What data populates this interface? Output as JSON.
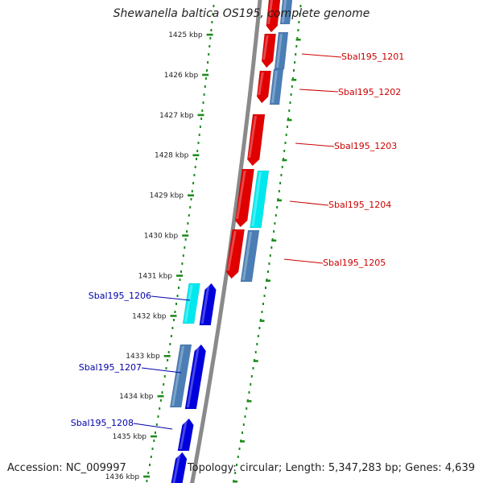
{
  "title": "Shewanella baltica OS195, complete genome",
  "footer": {
    "accession": "Accession: NC_009997",
    "summary": "Topology: circular; Length: 5,347,283 bp; Genes: 4,639"
  },
  "colors": {
    "backbone": "#8a8a8a",
    "tick": "#1e8c1e",
    "forward_gene": "#e00000",
    "forward_label": "#cc0000",
    "reverse_gene": "#0000dd",
    "reverse_label": "#0000aa",
    "cds_cyan": "#00e8ee",
    "cds_steel": "#4a7eb5"
  },
  "ruler": {
    "labels": [
      "1425 kbp",
      "1426 kbp",
      "1427 kbp",
      "1428 kbp",
      "1429 kbp",
      "1430 kbp",
      "1431 kbp",
      "1432 kbp",
      "1433 kbp",
      "1434 kbp",
      "1435 kbp",
      "1436 kbp"
    ]
  },
  "genes": [
    {
      "name": "Sbal195_1201",
      "strand": "forward"
    },
    {
      "name": "Sbal195_1202",
      "strand": "forward"
    },
    {
      "name": "Sbal195_1203",
      "strand": "forward"
    },
    {
      "name": "Sbal195_1204",
      "strand": "forward"
    },
    {
      "name": "Sbal195_1205",
      "strand": "forward"
    },
    {
      "name": "Sbal195_1206",
      "strand": "reverse"
    },
    {
      "name": "Sbal195_1207",
      "strand": "reverse"
    },
    {
      "name": "Sbal195_1208",
      "strand": "reverse"
    }
  ]
}
